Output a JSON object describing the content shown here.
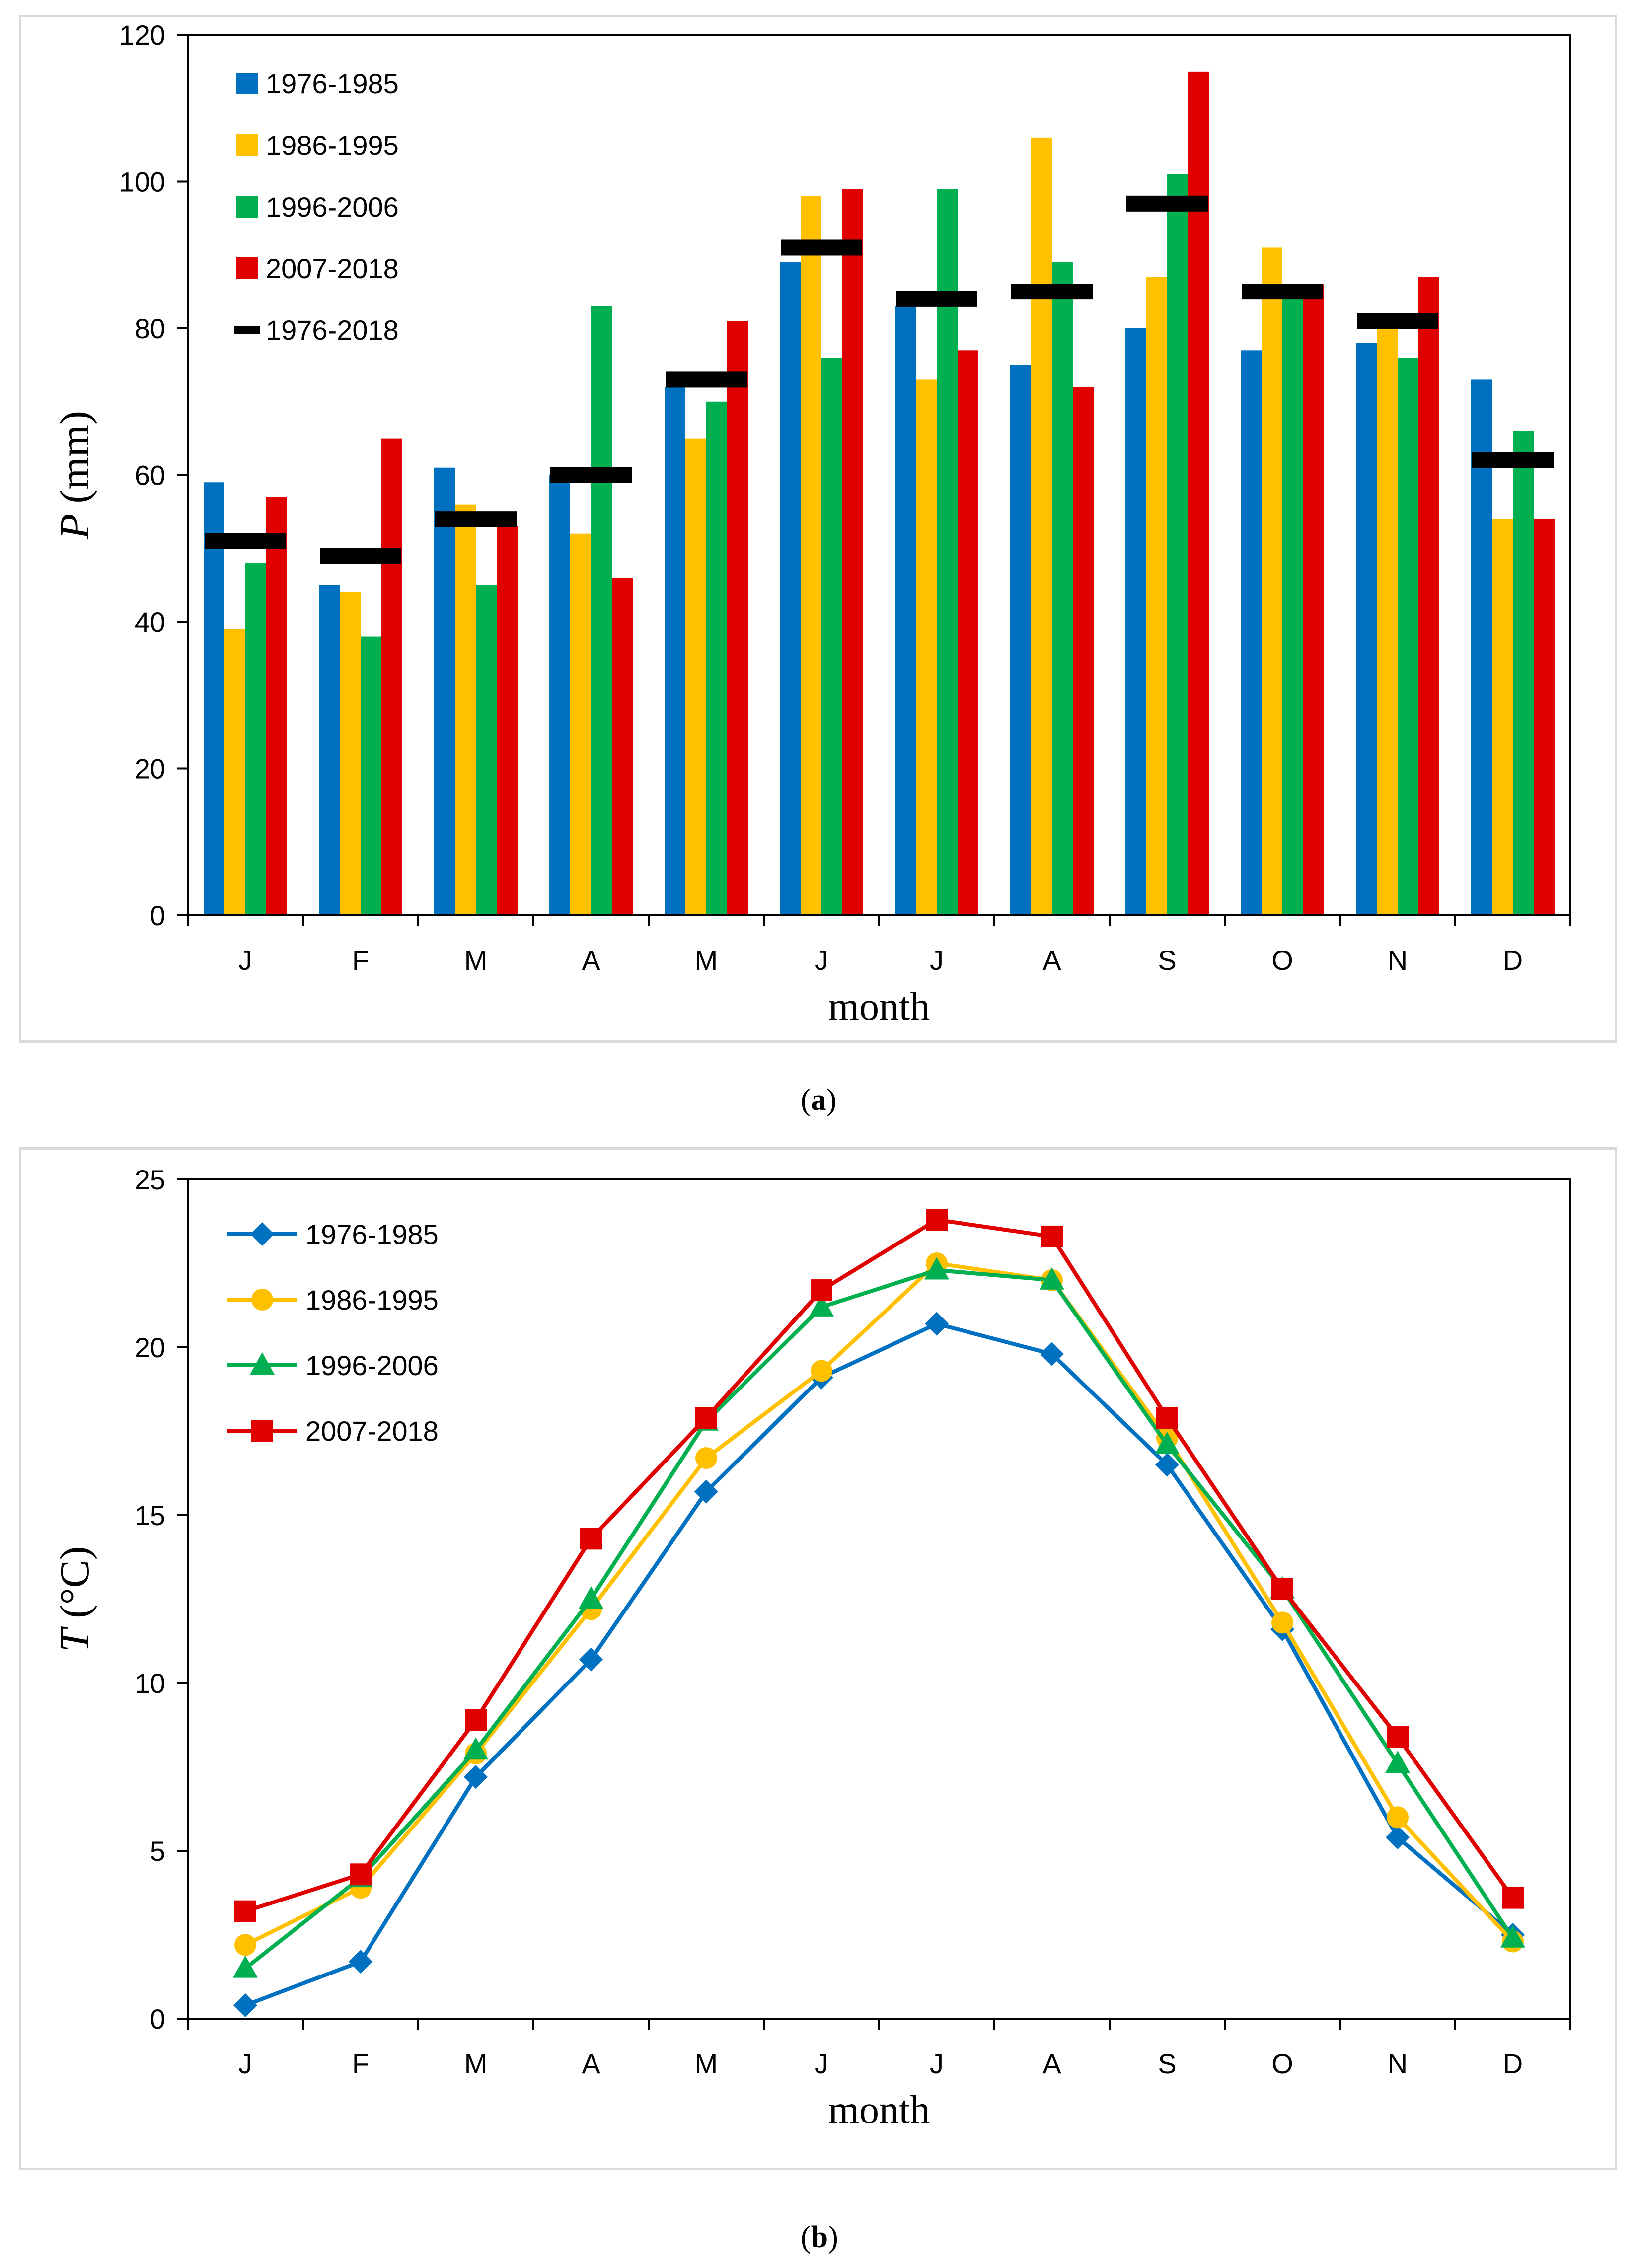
{
  "captions": {
    "a": "a",
    "b": "b"
  },
  "chart_data": [
    {
      "type": "bar",
      "panel": "a",
      "categories": [
        "J",
        "F",
        "M",
        "A",
        "M",
        "J",
        "J",
        "A",
        "S",
        "O",
        "N",
        "D"
      ],
      "series": [
        {
          "name": "1976-1985",
          "color": "#0070C0",
          "values": [
            59,
            45,
            61,
            60,
            72,
            89,
            83,
            75,
            80,
            77,
            78,
            73
          ]
        },
        {
          "name": "1986-1995",
          "color": "#FFC000",
          "values": [
            39,
            44,
            56,
            52,
            65,
            98,
            73,
            106,
            87,
            91,
            80,
            54
          ]
        },
        {
          "name": "1996-2006",
          "color": "#00B050",
          "values": [
            48,
            38,
            45,
            83,
            70,
            76,
            99,
            89,
            101,
            85,
            76,
            66
          ]
        },
        {
          "name": "2007-2018",
          "color": "#E00000",
          "values": [
            57,
            65,
            53,
            46,
            81,
            99,
            77,
            72,
            115,
            86,
            87,
            54
          ]
        }
      ],
      "mean": {
        "name": "1976-2018",
        "color": "#000000",
        "values": [
          51,
          49,
          54,
          60,
          73,
          91,
          84,
          85,
          97,
          85,
          81,
          62
        ]
      },
      "ylabel_symbol": "P",
      "ylabel_unit": "(mm)",
      "xlabel": "month",
      "ylim": [
        0,
        120
      ],
      "yticks": [
        "0",
        "20",
        "40",
        "60",
        "80",
        "100",
        "120"
      ],
      "legend_position": "top-left"
    },
    {
      "type": "line",
      "panel": "b",
      "categories": [
        "J",
        "F",
        "M",
        "A",
        "M",
        "J",
        "J",
        "A",
        "S",
        "O",
        "N",
        "D"
      ],
      "series": [
        {
          "name": "1976-1985",
          "color": "#0070C0",
          "marker": "diamond",
          "values": [
            0.4,
            1.7,
            7.2,
            10.7,
            15.7,
            19.1,
            20.7,
            19.8,
            16.5,
            11.6,
            5.4,
            2.5
          ]
        },
        {
          "name": "1986-1995",
          "color": "#FFC000",
          "marker": "circle",
          "values": [
            2.2,
            3.9,
            7.9,
            12.2,
            16.7,
            19.3,
            22.5,
            22.0,
            17.3,
            11.8,
            6.0,
            2.3
          ]
        },
        {
          "name": "1996-2006",
          "color": "#00B050",
          "marker": "triangle",
          "values": [
            1.5,
            4.2,
            8.0,
            12.5,
            17.8,
            21.2,
            22.3,
            22.0,
            17.1,
            12.8,
            7.6,
            2.4
          ]
        },
        {
          "name": "2007-2018",
          "color": "#E00000",
          "marker": "square",
          "values": [
            3.2,
            4.3,
            8.9,
            14.3,
            17.9,
            21.7,
            23.8,
            23.3,
            17.9,
            12.8,
            8.4,
            3.6
          ]
        }
      ],
      "ylabel_symbol": "T",
      "ylabel_unit": "(°C)",
      "xlabel": "month",
      "ylim": [
        0,
        25
      ],
      "yticks": [
        "0",
        "5",
        "10",
        "15",
        "20",
        "25"
      ],
      "legend_position": "top-left"
    }
  ]
}
